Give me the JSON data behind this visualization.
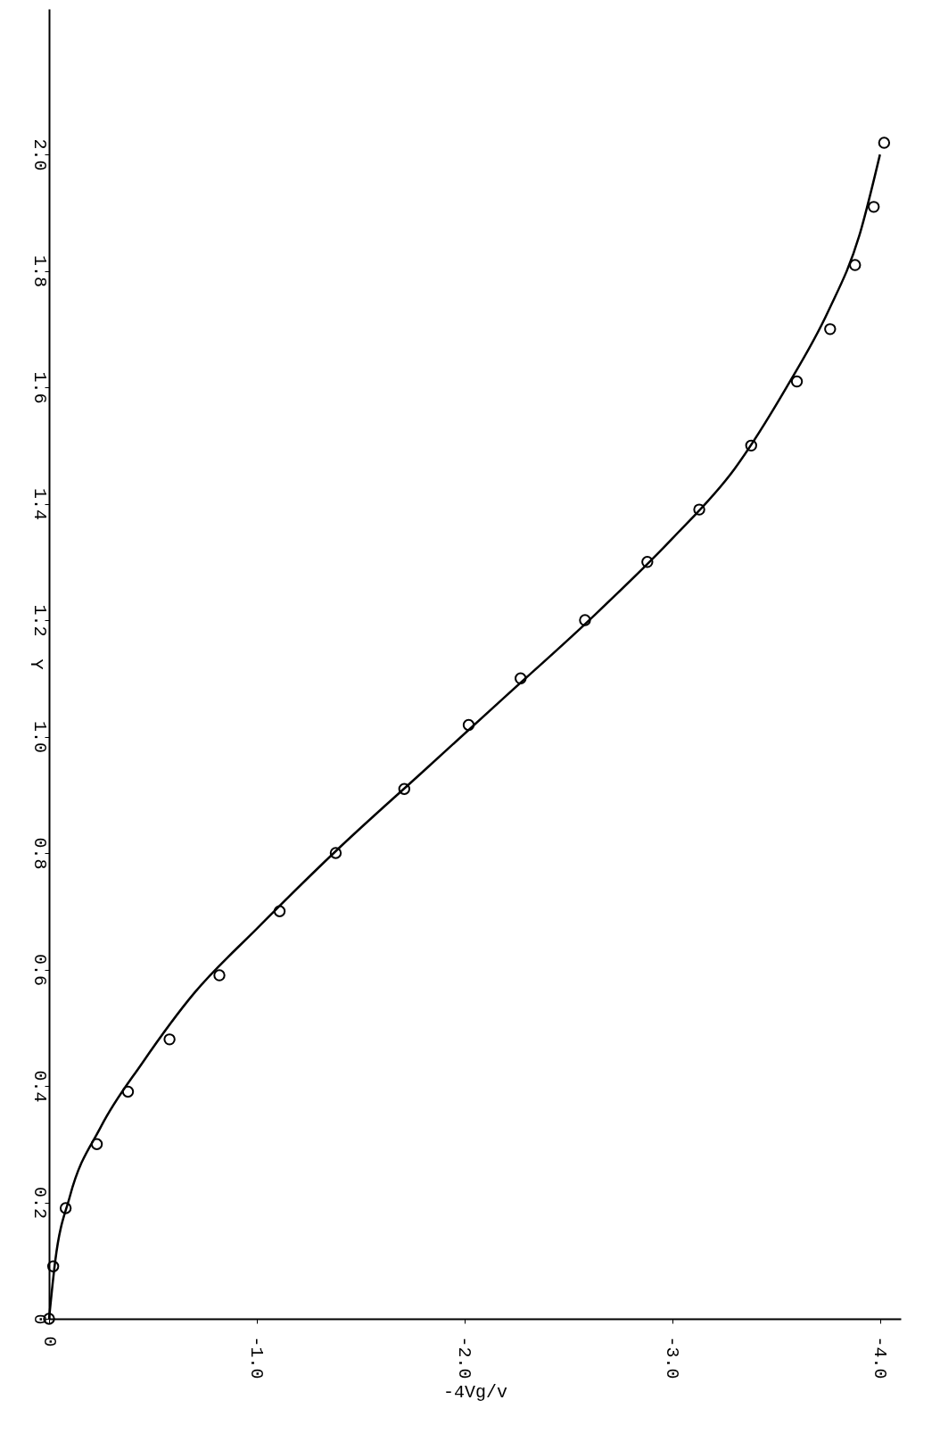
{
  "chart_data": {
    "type": "scatter",
    "xlabel": "-4Vg/v",
    "ylabel": "Y",
    "xlim": [
      0,
      -4.1
    ],
    "ylim": [
      0,
      2.25
    ],
    "xticks": [
      0,
      {
        "value": -1,
        "label": "-1.0"
      },
      {
        "value": -2,
        "label": "-2.0"
      },
      {
        "value": -3,
        "label": "-3.0"
      },
      {
        "value": -4,
        "label": "-4.0"
      }
    ],
    "yticks": [
      0,
      0.2,
      0.4,
      0.6,
      0.8,
      {
        "value": 1,
        "label": "1.0"
      },
      1.2,
      1.4,
      1.6,
      1.8,
      {
        "value": 2,
        "label": "2.0"
      }
    ],
    "grid": false,
    "series": [
      {
        "marker": "circle",
        "color": "#000000",
        "x": [
          0,
          -0.02,
          -0.08,
          -0.23,
          -0.38,
          -0.58,
          -0.82,
          -1.11,
          -1.38,
          -1.71,
          -2.02,
          -2.27,
          -2.58,
          -2.88,
          -3.13,
          -3.38,
          -3.6,
          -3.76,
          -3.88,
          -3.97,
          -4.02
        ],
        "values": [
          0,
          0.09,
          0.19,
          0.3,
          0.39,
          0.48,
          0.59,
          0.7,
          0.8,
          0.91,
          1.02,
          1.1,
          1.2,
          1.3,
          1.39,
          1.5,
          1.61,
          1.7,
          1.81,
          1.91,
          2.02
        ]
      },
      {
        "type": "line",
        "line_style": "solid",
        "color": "#000000",
        "x": [
          0,
          -0.03,
          -0.1,
          -0.25,
          -0.45,
          -0.7,
          -1.0,
          -1.4,
          -1.8,
          -2.2,
          -2.6,
          -3.0,
          -3.3,
          -3.55,
          -3.75,
          -3.9,
          -4.0
        ],
        "values": [
          0,
          0.1,
          0.21,
          0.33,
          0.44,
          0.56,
          0.67,
          0.81,
          0.94,
          1.07,
          1.2,
          1.34,
          1.46,
          1.6,
          1.73,
          1.86,
          2.0
        ]
      }
    ]
  }
}
